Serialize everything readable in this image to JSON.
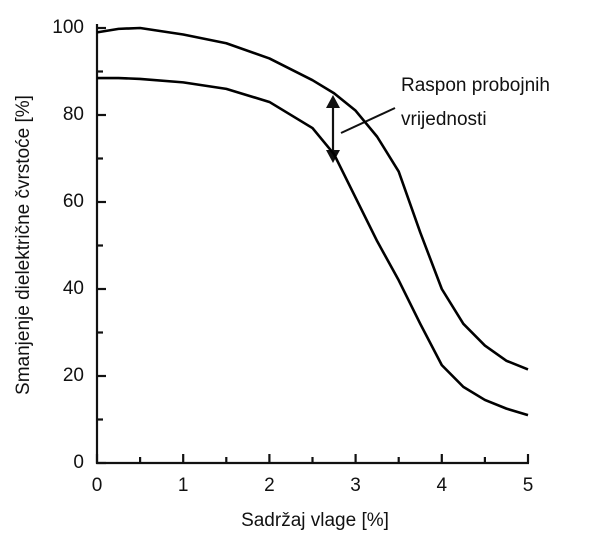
{
  "chart_data": {
    "type": "line",
    "x_label": "Sadržaj vlage [%]",
    "y_label": "Smanjenje dielektrične čvrstoće [%]",
    "annotation": [
      "Raspon probojnih",
      "vrijednosti"
    ],
    "x": [
      0,
      0.25,
      0.5,
      1,
      1.5,
      2,
      2.5,
      2.75,
      3,
      3.25,
      3.5,
      3.75,
      4,
      4.25,
      4.5,
      4.75,
      5
    ],
    "series": [
      {
        "color": "#000000",
        "values": [
          99,
          99.8,
          100,
          98.5,
          96.5,
          93,
          88,
          85,
          81,
          75,
          67,
          53,
          40,
          32,
          27,
          23.5,
          21.5
        ]
      },
      {
        "color": "#000000",
        "values": [
          88.5,
          88.5,
          88.3,
          87.5,
          86,
          83,
          77,
          71,
          61,
          51,
          42,
          32,
          22.5,
          17.5,
          14.5,
          12.5,
          11
        ]
      }
    ],
    "xlim": [
      0,
      5
    ],
    "xticks": [
      0,
      1,
      2,
      3,
      4,
      5
    ],
    "ylim": [
      0,
      100
    ],
    "yticks": [
      0,
      20,
      40,
      60,
      80,
      100
    ],
    "grid": false
  }
}
